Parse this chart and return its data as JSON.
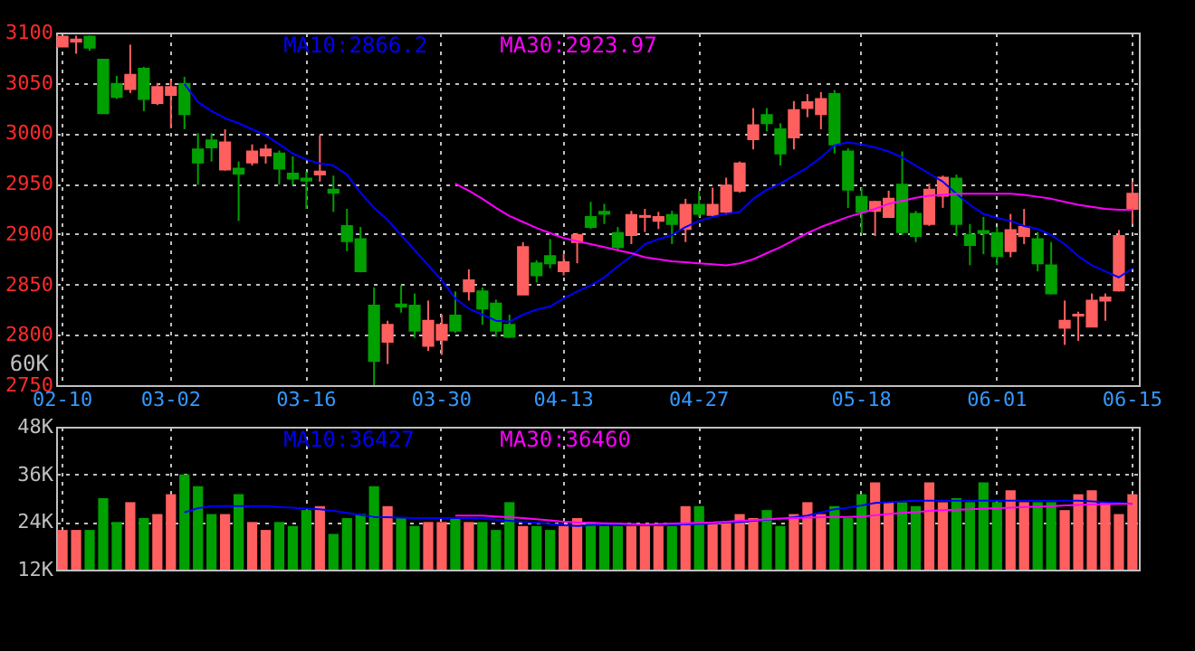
{
  "chart_data": [
    {
      "type": "candlestick",
      "categories": [
        "02-10",
        null,
        null,
        null,
        null,
        null,
        null,
        null,
        "03-02",
        null,
        null,
        null,
        null,
        null,
        null,
        null,
        null,
        null,
        "03-16",
        null,
        null,
        null,
        null,
        null,
        null,
        null,
        null,
        null,
        "03-30",
        null,
        null,
        null,
        null,
        null,
        null,
        null,
        null,
        "04-13",
        null,
        null,
        null,
        null,
        null,
        null,
        null,
        null,
        null,
        "04-27",
        null,
        null,
        null,
        null,
        null,
        null,
        null,
        null,
        null,
        null,
        null,
        "05-18",
        null,
        null,
        null,
        null,
        null,
        null,
        null,
        null,
        null,
        "06-01",
        null,
        null,
        null,
        null,
        null,
        null,
        null,
        null,
        null,
        "06-15"
      ],
      "ohlc": [
        [
          3086,
          3096,
          3086,
          3096
        ],
        [
          3091,
          3097,
          3079,
          3093
        ],
        [
          3096,
          3097,
          3082,
          3085
        ],
        [
          3073,
          3074,
          3020,
          3020
        ],
        [
          3049,
          3057,
          3034,
          3036
        ],
        [
          3044,
          3088,
          3040,
          3058
        ],
        [
          3064,
          3066,
          3022,
          3034
        ],
        [
          3030,
          3050,
          3028,
          3046
        ],
        [
          3038,
          3053,
          3005,
          3046
        ],
        [
          3049,
          3056,
          3004,
          3019
        ],
        [
          2984,
          3000,
          2949,
          2971
        ],
        [
          2993,
          3000,
          2972,
          2986
        ],
        [
          2964,
          3004,
          2963,
          2991
        ],
        [
          2965,
          2972,
          2913,
          2960
        ],
        [
          2971,
          2989,
          2968,
          2982
        ],
        [
          2978,
          2989,
          2970,
          2984
        ],
        [
          2980,
          2983,
          2949,
          2965
        ],
        [
          2960,
          2977,
          2949,
          2955
        ],
        [
          2955,
          2962,
          2925,
          2953
        ],
        [
          2959,
          2998,
          2952,
          2962
        ],
        [
          2944,
          2958,
          2922,
          2941
        ],
        [
          2908,
          2925,
          2883,
          2893
        ],
        [
          2895,
          2907,
          2862,
          2863
        ],
        [
          2829,
          2847,
          2750,
          2774
        ],
        [
          2793,
          2814,
          2771,
          2810
        ],
        [
          2830,
          2849,
          2822,
          2828
        ],
        [
          2829,
          2841,
          2797,
          2804
        ],
        [
          2789,
          2834,
          2784,
          2814
        ],
        [
          2795,
          2820,
          2780,
          2810
        ],
        [
          2819,
          2843,
          2802,
          2804
        ],
        [
          2843,
          2865,
          2834,
          2854
        ],
        [
          2843,
          2847,
          2810,
          2826
        ],
        [
          2831,
          2835,
          2798,
          2804
        ],
        [
          2810,
          2820,
          2797,
          2798
        ],
        [
          2840,
          2892,
          2840,
          2887
        ],
        [
          2871,
          2874,
          2852,
          2859
        ],
        [
          2878,
          2895,
          2866,
          2871
        ],
        [
          2863,
          2880,
          2859,
          2872
        ],
        [
          2892,
          2901,
          2871,
          2899
        ],
        [
          2917,
          2932,
          2905,
          2907
        ],
        [
          2922,
          2930,
          2910,
          2920
        ],
        [
          2901,
          2907,
          2884,
          2887
        ],
        [
          2899,
          2923,
          2890,
          2919
        ],
        [
          2917,
          2925,
          2902,
          2918
        ],
        [
          2913,
          2922,
          2905,
          2917
        ],
        [
          2919,
          2923,
          2890,
          2910
        ],
        [
          2905,
          2935,
          2892,
          2929
        ],
        [
          2929,
          2943,
          2917,
          2920
        ],
        [
          2919,
          2946,
          2916,
          2929
        ],
        [
          2922,
          2956,
          2919,
          2948
        ],
        [
          2943,
          2972,
          2941,
          2970
        ],
        [
          2994,
          3025,
          2984,
          3008
        ],
        [
          3018,
          3025,
          3002,
          3010
        ],
        [
          3004,
          3010,
          2968,
          2980
        ],
        [
          2996,
          3032,
          2984,
          3023
        ],
        [
          3025,
          3039,
          3016,
          3031
        ],
        [
          3019,
          3041,
          3004,
          3034
        ],
        [
          3039,
          3043,
          2980,
          2989
        ],
        [
          2982,
          2985,
          2926,
          2944
        ],
        [
          2937,
          2946,
          2901,
          2922
        ],
        [
          2923,
          2933,
          2898,
          2932
        ],
        [
          2917,
          2943,
          2916,
          2935
        ],
        [
          2949,
          2982,
          2899,
          2902
        ],
        [
          2920,
          2923,
          2892,
          2898
        ],
        [
          2910,
          2950,
          2908,
          2944
        ],
        [
          2938,
          2958,
          2926,
          2956
        ],
        [
          2955,
          2959,
          2898,
          2910
        ],
        [
          2899,
          2910,
          2869,
          2889
        ],
        [
          2903,
          2917,
          2880,
          2901
        ],
        [
          2901,
          2907,
          2869,
          2878
        ],
        [
          2883,
          2920,
          2877,
          2904
        ],
        [
          2898,
          2925,
          2890,
          2907
        ],
        [
          2895,
          2902,
          2863,
          2871
        ],
        [
          2869,
          2892,
          2840,
          2841
        ],
        [
          2807,
          2834,
          2790,
          2814
        ],
        [
          2819,
          2823,
          2794,
          2820
        ],
        [
          2808,
          2841,
          2808,
          2834
        ],
        [
          2834,
          2841,
          2814,
          2837
        ],
        [
          2844,
          2904,
          2843,
          2898
        ],
        [
          2925,
          2952,
          2910,
          2940
        ]
      ],
      "colors": [
        "#ff5f5f",
        "#ff5f5f",
        "#00a000",
        "#00a000",
        "#00a000",
        "#ff5f5f",
        "#00a000",
        "#ff5f5f",
        "#ff5f5f",
        "#00a000",
        "#00a000",
        "#00a000",
        "#ff5f5f",
        "#00a000",
        "#ff5f5f",
        "#ff5f5f",
        "#00a000",
        "#00a000",
        "#00a000",
        "#ff5f5f",
        "#00a000",
        "#00a000",
        "#00a000",
        "#00a000",
        "#ff5f5f",
        "#00a000",
        "#00a000",
        "#ff5f5f",
        "#ff5f5f",
        "#00a000",
        "#ff5f5f",
        "#00a000",
        "#00a000",
        "#00a000",
        "#ff5f5f",
        "#00a000",
        "#00a000",
        "#ff5f5f",
        "#ff5f5f",
        "#00a000",
        "#00a000",
        "#00a000",
        "#ff5f5f",
        "#ff5f5f",
        "#ff5f5f",
        "#00a000",
        "#ff5f5f",
        "#00a000",
        "#ff5f5f",
        "#ff5f5f",
        "#ff5f5f",
        "#ff5f5f",
        "#00a000",
        "#00a000",
        "#ff5f5f",
        "#ff5f5f",
        "#ff5f5f",
        "#00a000",
        "#00a000",
        "#00a000",
        "#ff5f5f",
        "#ff5f5f",
        "#00a000",
        "#00a000",
        "#ff5f5f",
        "#ff5f5f",
        "#00a000",
        "#00a000",
        "#00a000",
        "#00a000",
        "#ff5f5f",
        "#ff5f5f",
        "#00a000",
        "#00a000",
        "#ff5f5f",
        "#ff5f5f",
        "#ff5f5f",
        "#ff5f5f",
        "#ff5f5f",
        "#ff5f5f"
      ],
      "series": [
        {
          "name": "MA10:2866.2",
          "type": "line",
          "color": "#0000ff",
          "values": [
            null,
            null,
            null,
            null,
            null,
            null,
            null,
            null,
            null,
            3049,
            3031,
            3022,
            3015,
            3010,
            3004,
            2998,
            2989,
            2980,
            2974,
            2970,
            2968,
            2959,
            2941,
            2926,
            2914,
            2899,
            2884,
            2869,
            2854,
            2836,
            2826,
            2820,
            2814,
            2813,
            2820,
            2825,
            2828,
            2836,
            2843,
            2849,
            2857,
            2868,
            2878,
            2890,
            2895,
            2899,
            2907,
            2913,
            2917,
            2920,
            2922,
            2935,
            2944,
            2950,
            2958,
            2966,
            2976,
            2988,
            2991,
            2989,
            2986,
            2982,
            2976,
            2968,
            2960,
            2952,
            2940,
            2929,
            2920,
            2916,
            2913,
            2908,
            2905,
            2899,
            2890,
            2878,
            2869,
            2863,
            2857,
            2866
          ]
        },
        {
          "name": "MA30:2923.97",
          "type": "line",
          "color": "#ff00ff",
          "values": [
            null,
            null,
            null,
            null,
            null,
            null,
            null,
            null,
            null,
            null,
            null,
            null,
            null,
            null,
            null,
            null,
            null,
            null,
            null,
            null,
            null,
            null,
            null,
            null,
            null,
            null,
            null,
            null,
            null,
            2950,
            2943,
            2935,
            2926,
            2918,
            2912,
            2906,
            2901,
            2896,
            2893,
            2890,
            2887,
            2884,
            2881,
            2877,
            2875,
            2873,
            2872,
            2871,
            2870,
            2869,
            2871,
            2875,
            2881,
            2887,
            2894,
            2901,
            2907,
            2912,
            2917,
            2921,
            2925,
            2930,
            2933,
            2936,
            2938,
            2939,
            2940,
            2940,
            2940,
            2940,
            2940,
            2939,
            2937,
            2935,
            2932,
            2929,
            2927,
            2925,
            2924,
            2924
          ]
        }
      ],
      "ylim": [
        2750,
        3100
      ],
      "yticks": [
        2750,
        2800,
        2850,
        2900,
        2950,
        3000,
        3050,
        3100
      ],
      "grid": true,
      "annotations": [
        "60K"
      ]
    },
    {
      "type": "bar",
      "categories": [
        null,
        null,
        null,
        null,
        null,
        null,
        null,
        null,
        null,
        null,
        null,
        null,
        null,
        null,
        null,
        null,
        null,
        null,
        null,
        null,
        null,
        null,
        null,
        null,
        null,
        null,
        null,
        null,
        null,
        null,
        null,
        null,
        null,
        null,
        null,
        null,
        null,
        null,
        null,
        null,
        null,
        null,
        null,
        null,
        null,
        null,
        null,
        null,
        null,
        null,
        null,
        null,
        null,
        null,
        null,
        null,
        null,
        null,
        null,
        null,
        null,
        null,
        null,
        null,
        null,
        null,
        null,
        null,
        null,
        null,
        null,
        null,
        null,
        null,
        null,
        null,
        null,
        null,
        null,
        null
      ],
      "values": [
        22,
        22,
        22,
        30,
        24,
        29,
        25,
        26,
        31,
        36,
        33,
        26,
        26,
        31,
        24,
        22,
        24,
        23,
        27,
        28,
        21,
        25,
        26,
        33,
        28,
        25,
        23,
        24,
        24,
        25,
        24,
        24,
        22,
        29,
        23,
        23,
        22,
        23,
        25,
        24,
        23,
        23,
        23,
        23,
        23,
        23,
        28,
        28,
        24,
        24,
        26,
        25,
        27,
        23,
        26,
        29,
        26,
        28,
        25,
        31,
        34,
        29,
        29,
        28,
        34,
        29,
        30,
        29,
        34,
        29,
        32,
        29,
        29,
        29,
        27,
        31,
        32,
        29,
        26,
        31
      ],
      "colors": [
        "#ff5f5f",
        "#ff5f5f",
        "#00a000",
        "#00a000",
        "#00a000",
        "#ff5f5f",
        "#00a000",
        "#ff5f5f",
        "#ff5f5f",
        "#00a000",
        "#00a000",
        "#00a000",
        "#ff5f5f",
        "#00a000",
        "#ff5f5f",
        "#ff5f5f",
        "#00a000",
        "#00a000",
        "#00a000",
        "#ff5f5f",
        "#00a000",
        "#00a000",
        "#00a000",
        "#00a000",
        "#ff5f5f",
        "#00a000",
        "#00a000",
        "#ff5f5f",
        "#ff5f5f",
        "#00a000",
        "#ff5f5f",
        "#00a000",
        "#00a000",
        "#00a000",
        "#ff5f5f",
        "#00a000",
        "#00a000",
        "#ff5f5f",
        "#ff5f5f",
        "#00a000",
        "#00a000",
        "#00a000",
        "#ff5f5f",
        "#ff5f5f",
        "#ff5f5f",
        "#00a000",
        "#ff5f5f",
        "#00a000",
        "#ff5f5f",
        "#ff5f5f",
        "#ff5f5f",
        "#ff5f5f",
        "#00a000",
        "#00a000",
        "#ff5f5f",
        "#ff5f5f",
        "#ff5f5f",
        "#00a000",
        "#00a000",
        "#00a000",
        "#ff5f5f",
        "#ff5f5f",
        "#00a000",
        "#00a000",
        "#ff5f5f",
        "#ff5f5f",
        "#00a000",
        "#00a000",
        "#00a000",
        "#00a000",
        "#ff5f5f",
        "#ff5f5f",
        "#00a000",
        "#00a000",
        "#ff5f5f",
        "#ff5f5f",
        "#ff5f5f",
        "#ff5f5f",
        "#ff5f5f",
        "#ff5f5f"
      ],
      "series": [
        {
          "name": "MA10:36427",
          "type": "line",
          "color": "#0000ff",
          "values": [
            null,
            null,
            null,
            null,
            null,
            null,
            null,
            null,
            null,
            26.4,
            27.5,
            28,
            28,
            28,
            28,
            28,
            27.8,
            27.6,
            27.4,
            27.2,
            26.8,
            26.3,
            25.8,
            25.3,
            25.2,
            25.1,
            25,
            25,
            25,
            25,
            25,
            24.8,
            24.6,
            24.3,
            24,
            23.8,
            23.5,
            23.2,
            23,
            23.2,
            23.4,
            23.4,
            23.4,
            23.4,
            23.4,
            23.4,
            23.4,
            23.5,
            23.7,
            23.9,
            24,
            24.3,
            24.6,
            24.9,
            25.2,
            25.6,
            26.4,
            27.2,
            27.6,
            28.2,
            28.8,
            29,
            29.2,
            29.4,
            29.4,
            29.4,
            29.4,
            29.4,
            29.4,
            29.4,
            29.4,
            29.4,
            29.4,
            29.4,
            29.4,
            29.4,
            29.2,
            29,
            28.8,
            28.6
          ]
        },
        {
          "name": "MA30:36460",
          "type": "line",
          "color": "#ff00ff",
          "values": [
            null,
            null,
            null,
            null,
            null,
            null,
            null,
            null,
            null,
            null,
            null,
            null,
            null,
            null,
            null,
            null,
            null,
            null,
            null,
            null,
            null,
            null,
            null,
            null,
            null,
            null,
            null,
            null,
            null,
            25.6,
            25.6,
            25.6,
            25.4,
            25.2,
            25,
            24.7,
            24.4,
            24.1,
            23.9,
            23.8,
            23.7,
            23.6,
            23.5,
            23.4,
            23.5,
            23.6,
            23.7,
            23.8,
            23.9,
            24.1,
            24.3,
            24.5,
            24.7,
            24.9,
            25,
            25.1,
            25.2,
            25.3,
            25.3,
            25.4,
            25.7,
            26,
            26.3,
            26.5,
            26.8,
            27,
            27.1,
            27.2,
            27.4,
            27.5,
            27.6,
            27.8,
            27.9,
            28,
            28.2,
            28.3,
            28.4,
            28.5,
            28.6,
            28.6
          ]
        }
      ],
      "ylim": [
        12,
        48
      ],
      "yticks": [
        {
          "value": 12,
          "label": "12K"
        },
        {
          "value": 24,
          "label": "24K"
        },
        {
          "value": 36,
          "label": "36K"
        },
        {
          "value": 48,
          "label": "48K"
        }
      ],
      "grid": true,
      "tick_labels": "y"
    }
  ]
}
